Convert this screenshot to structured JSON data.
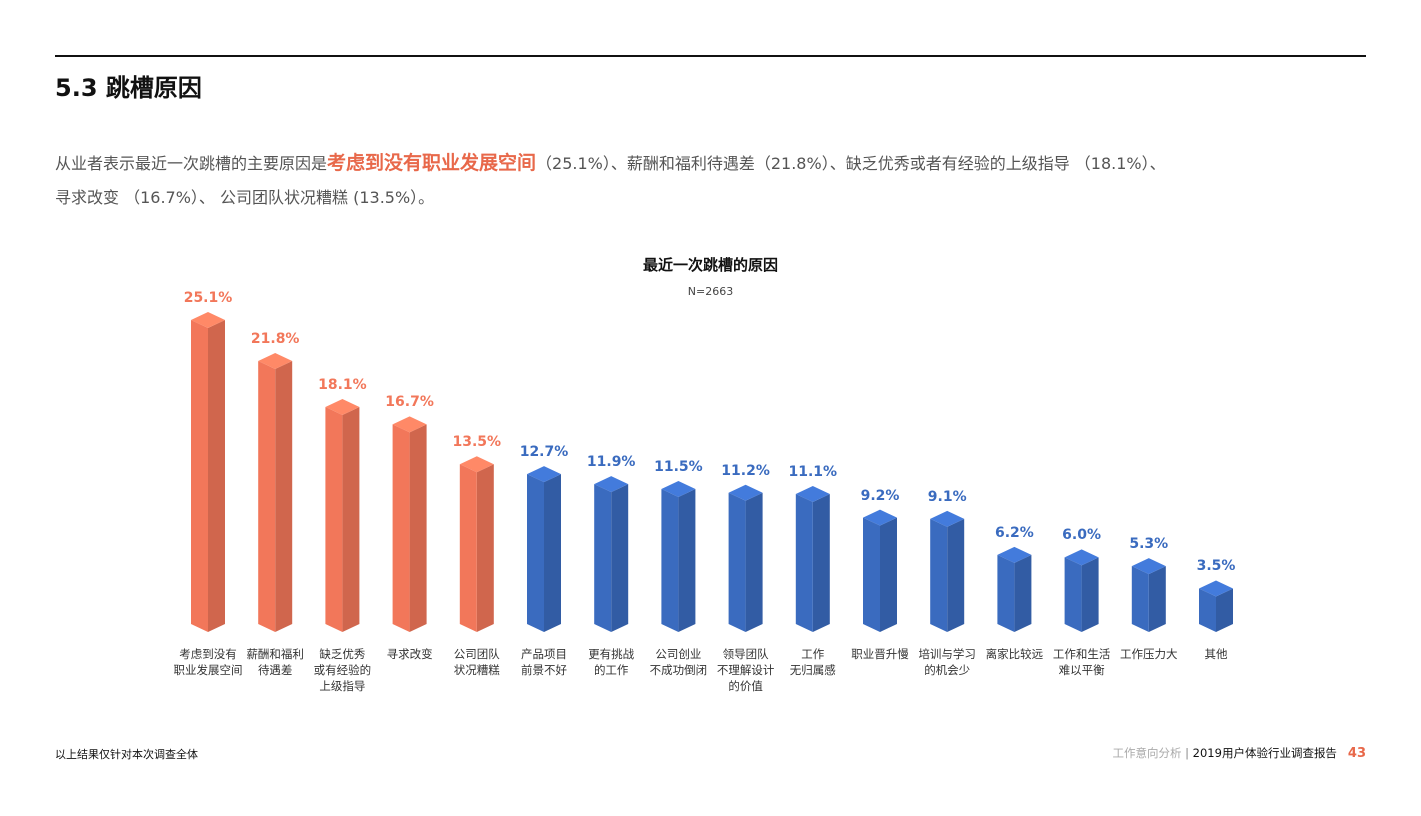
{
  "header": {
    "title": "5.3 跳槽原因"
  },
  "summary": {
    "lead": "从业者表示最近一次跳槽的主要原因是",
    "highlight": "考虑到没有职业发展空间",
    "rest_line1": "（25.1%）、薪酬和福利待遇差（21.8%）、缺乏优秀或者有经验的上级指导 （18.1%）、",
    "line2": "寻求改变 （16.7%）、 公司团队状况糟糕 (13.5%）。"
  },
  "chart_data": {
    "type": "bar3d",
    "title": "最近一次跳槽的原因",
    "subtitle": "N=2663",
    "categories": [
      "考虑到没有\n职业发展空间",
      "薪酬和福利\n待遇差",
      "缺乏优秀\n或有经验的\n上级指导",
      "寻求改变",
      "公司团队\n状况糟糕",
      "产品项目\n前景不好",
      "更有挑战\n的工作",
      "公司创业\n不成功倒闭",
      "领导团队\n不理解设计\n的价值",
      "工作\n无归属感",
      "职业晋升慢",
      "培训与学习\n的机会少",
      "离家比较远",
      "工作和生活\n难以平衡",
      "工作压力大",
      "其他"
    ],
    "values": [
      25.1,
      21.8,
      18.1,
      16.7,
      13.5,
      12.7,
      11.9,
      11.5,
      11.2,
      11.1,
      9.2,
      9.1,
      6.2,
      6.0,
      5.3,
      3.5
    ],
    "value_labels": [
      "25.1%",
      "21.8%",
      "18.1%",
      "16.7%",
      "13.5%",
      "12.7%",
      "11.9%",
      "11.5%",
      "11.2%",
      "11.1%",
      "9.2%",
      "9.1%",
      "6.2%",
      "6.0%",
      "5.3%",
      "3.5%"
    ],
    "colors": [
      "#f2775a",
      "#f2775a",
      "#f2775a",
      "#f2775a",
      "#f2775a",
      "#3a6bbf",
      "#3a6bbf",
      "#3a6bbf",
      "#3a6bbf",
      "#3a6bbf",
      "#3a6bbf",
      "#3a6bbf",
      "#3a6bbf",
      "#3a6bbf",
      "#3a6bbf",
      "#3a6bbf"
    ]
  },
  "footer": {
    "note": "以上结果仅针对本次调查全体",
    "section": "工作意向分析",
    "separator": "|",
    "report": "2019用户体验行业调查报告",
    "page": "43"
  }
}
